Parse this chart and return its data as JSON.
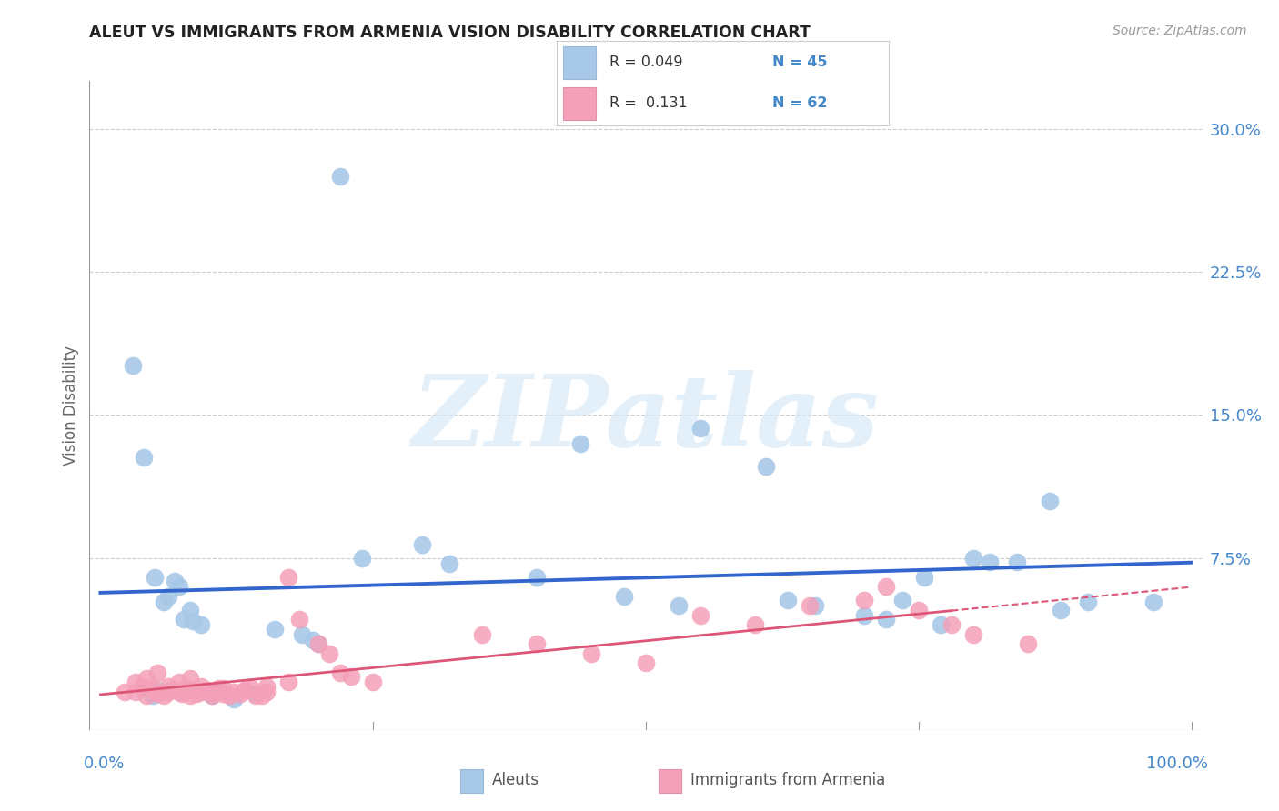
{
  "title": "ALEUT VS IMMIGRANTS FROM ARMENIA VISION DISABILITY CORRELATION CHART",
  "source": "Source: ZipAtlas.com",
  "ylabel": "Vision Disability",
  "xlim": [
    -0.01,
    1.01
  ],
  "ylim": [
    -0.015,
    0.325
  ],
  "yticks": [
    0.0,
    0.075,
    0.15,
    0.225,
    0.3
  ],
  "ytick_labels": [
    "",
    "7.5%",
    "15.0%",
    "22.5%",
    "30.0%"
  ],
  "aleuts_color": "#a8c8e8",
  "aleuts_edge": "#a8c8e8",
  "armenia_color": "#f4a0b8",
  "armenia_edge": "#f4a0b8",
  "aleuts_line_color": "#3366cc",
  "armenia_line_color": "#dd5577",
  "watermark": "ZIPatlas",
  "legend_r1": "R = 0.049",
  "legend_n1": "N = 45",
  "legend_r2": "R =  0.131",
  "legend_n2": "N = 62",
  "aleuts_x": [
    0.22,
    0.03,
    0.04,
    0.44,
    0.55,
    0.61,
    0.87,
    0.815,
    0.84,
    0.295,
    0.32,
    0.05,
    0.068,
    0.072,
    0.062,
    0.058,
    0.082,
    0.076,
    0.085,
    0.092,
    0.16,
    0.185,
    0.195,
    0.2,
    0.24,
    0.4,
    0.48,
    0.53,
    0.63,
    0.655,
    0.7,
    0.72,
    0.735,
    0.755,
    0.77,
    0.8,
    0.88,
    0.905,
    0.965,
    0.052,
    0.048,
    0.073,
    0.102,
    0.122,
    0.142
  ],
  "aleuts_y": [
    0.275,
    0.176,
    0.128,
    0.135,
    0.143,
    0.123,
    0.105,
    0.073,
    0.073,
    0.082,
    0.072,
    0.065,
    0.063,
    0.06,
    0.055,
    0.052,
    0.048,
    0.043,
    0.042,
    0.04,
    0.038,
    0.035,
    0.032,
    0.03,
    0.075,
    0.065,
    0.055,
    0.05,
    0.053,
    0.05,
    0.045,
    0.043,
    0.053,
    0.065,
    0.04,
    0.075,
    0.048,
    0.052,
    0.052,
    0.006,
    0.003,
    0.005,
    0.003,
    0.001,
    0.004
  ],
  "armenia_x": [
    0.022,
    0.032,
    0.042,
    0.038,
    0.052,
    0.048,
    0.062,
    0.058,
    0.065,
    0.072,
    0.068,
    0.075,
    0.082,
    0.078,
    0.085,
    0.092,
    0.088,
    0.102,
    0.098,
    0.105,
    0.112,
    0.108,
    0.122,
    0.118,
    0.132,
    0.128,
    0.142,
    0.138,
    0.152,
    0.148,
    0.172,
    0.182,
    0.2,
    0.21,
    0.22,
    0.23,
    0.25,
    0.35,
    0.4,
    0.45,
    0.5,
    0.55,
    0.6,
    0.65,
    0.7,
    0.72,
    0.75,
    0.78,
    0.8,
    0.85,
    0.032,
    0.042,
    0.052,
    0.062,
    0.072,
    0.082,
    0.092,
    0.102,
    0.112,
    0.132,
    0.152,
    0.172
  ],
  "armenia_y": [
    0.005,
    0.005,
    0.003,
    0.008,
    0.004,
    0.007,
    0.005,
    0.003,
    0.006,
    0.005,
    0.006,
    0.004,
    0.003,
    0.007,
    0.006,
    0.005,
    0.004,
    0.003,
    0.006,
    0.005,
    0.004,
    0.007,
    0.005,
    0.003,
    0.006,
    0.004,
    0.003,
    0.007,
    0.005,
    0.003,
    0.065,
    0.043,
    0.03,
    0.025,
    0.015,
    0.013,
    0.01,
    0.035,
    0.03,
    0.025,
    0.02,
    0.045,
    0.04,
    0.05,
    0.053,
    0.06,
    0.048,
    0.04,
    0.035,
    0.03,
    0.01,
    0.012,
    0.015,
    0.008,
    0.01,
    0.012,
    0.008,
    0.005,
    0.007,
    0.006,
    0.008,
    0.01
  ]
}
